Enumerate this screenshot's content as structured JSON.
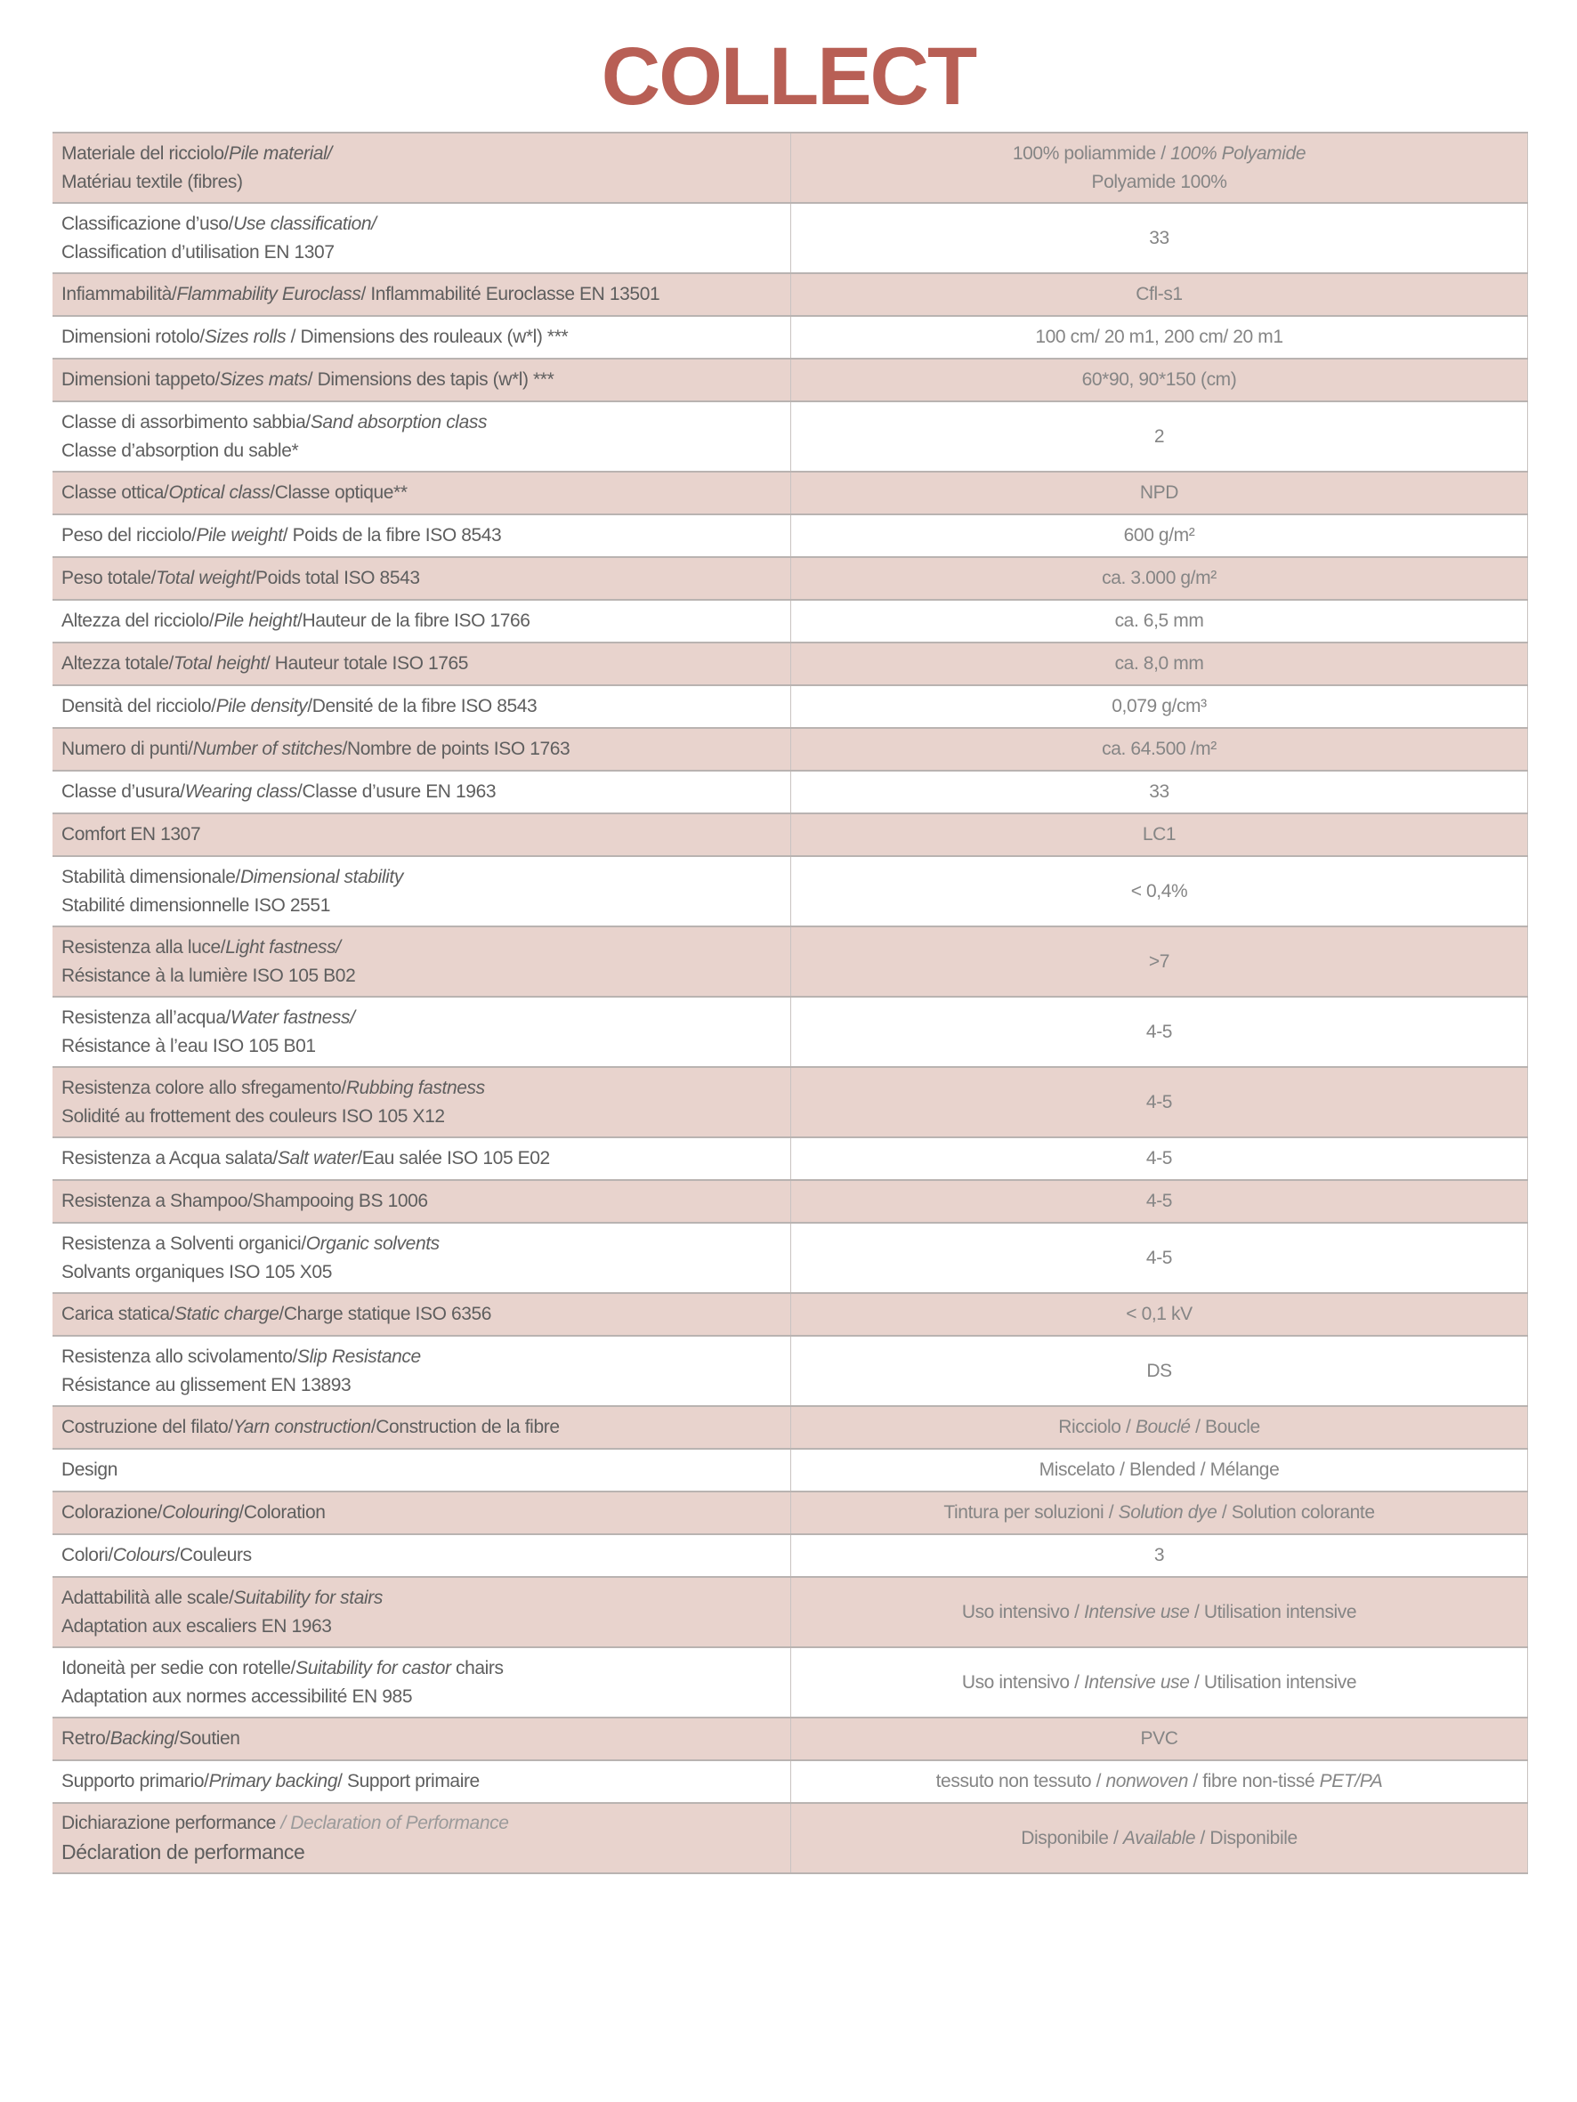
{
  "title": "COLLECT",
  "colors": {
    "title": "#b85f55",
    "band": "#e8d3cd",
    "text": "#5e5e5e",
    "value": "#858585"
  },
  "rows": [
    {
      "label": [
        [
          {
            "t": "Materiale del ricciolo/"
          },
          {
            "t": "Pile material/",
            "s": "i"
          }
        ],
        [
          {
            "t": "Matériau textile (fibres)"
          }
        ]
      ],
      "value": [
        [
          {
            "t": "100% poliammide / "
          },
          {
            "t": "100% Polyamide",
            "s": "i"
          }
        ],
        [
          {
            "t": "Polyamide 100%"
          }
        ]
      ]
    },
    {
      "label": [
        [
          {
            "t": "Classificazione d’uso/"
          },
          {
            "t": "Use classification/",
            "s": "i"
          }
        ],
        [
          {
            "t": "Classification d’utilisation EN 1307"
          }
        ]
      ],
      "value": [
        [
          {
            "t": "33"
          }
        ]
      ]
    },
    {
      "label": [
        [
          {
            "t": "Infiammabilità/"
          },
          {
            "t": "Flammability Euroclass",
            "s": "i"
          },
          {
            "t": "/ Inflammabilité Euroclasse EN 13501"
          }
        ]
      ],
      "value": [
        [
          {
            "t": "Cfl-s1"
          }
        ]
      ]
    },
    {
      "label": [
        [
          {
            "t": "Dimensioni rotolo/"
          },
          {
            "t": "Sizes rolls",
            "s": "i"
          },
          {
            "t": " / Dimensions des rouleaux (w*l) ***"
          }
        ]
      ],
      "value": [
        [
          {
            "t": "100 cm/ 20 m1, 200 cm/ 20 m1"
          }
        ]
      ]
    },
    {
      "label": [
        [
          {
            "t": "Dimensioni tappeto/"
          },
          {
            "t": "Sizes mats",
            "s": "i"
          },
          {
            "t": "/ Dimensions des tapis (w*l) ***"
          }
        ]
      ],
      "value": [
        [
          {
            "t": "60*90, 90*150 (cm)"
          }
        ]
      ]
    },
    {
      "label": [
        [
          {
            "t": "Classe di assorbimento sabbia/"
          },
          {
            "t": "Sand absorption class",
            "s": "i"
          }
        ],
        [
          {
            "t": "Classe d’absorption du sable*"
          }
        ]
      ],
      "value": [
        [
          {
            "t": "2"
          }
        ]
      ]
    },
    {
      "label": [
        [
          {
            "t": "Classe ottica/"
          },
          {
            "t": "Optical class",
            "s": "i"
          },
          {
            "t": "/Classe optique**"
          }
        ]
      ],
      "value": [
        [
          {
            "t": "NPD"
          }
        ]
      ]
    },
    {
      "label": [
        [
          {
            "t": "Peso del ricciolo/"
          },
          {
            "t": "Pile weight",
            "s": "i"
          },
          {
            "t": "/ Poids de la fibre ISO 8543"
          }
        ]
      ],
      "value": [
        [
          {
            "t": "600 g/m²"
          }
        ]
      ]
    },
    {
      "label": [
        [
          {
            "t": "Peso totale/"
          },
          {
            "t": "Total weight",
            "s": "i"
          },
          {
            "t": "/Poids total ISO 8543"
          }
        ]
      ],
      "value": [
        [
          {
            "t": "ca. 3.000 g/m²"
          }
        ]
      ]
    },
    {
      "label": [
        [
          {
            "t": "Altezza del ricciolo/"
          },
          {
            "t": "Pile height",
            "s": "i"
          },
          {
            "t": "/Hauteur de la fibre ISO 1766"
          }
        ]
      ],
      "value": [
        [
          {
            "t": "ca. 6,5 mm"
          }
        ]
      ]
    },
    {
      "label": [
        [
          {
            "t": "Altezza totale/"
          },
          {
            "t": "Total height",
            "s": "i"
          },
          {
            "t": "/ Hauteur totale ISO 1765"
          }
        ]
      ],
      "value": [
        [
          {
            "t": "ca. 8,0 mm"
          }
        ]
      ]
    },
    {
      "label": [
        [
          {
            "t": "Densità del ricciolo/"
          },
          {
            "t": "Pile density",
            "s": "i"
          },
          {
            "t": "/Densité de la fibre ISO 8543"
          }
        ]
      ],
      "value": [
        [
          {
            "t": "0,079 g/cm³"
          }
        ]
      ]
    },
    {
      "label": [
        [
          {
            "t": "Numero di punti/"
          },
          {
            "t": "Number of stitches",
            "s": "i"
          },
          {
            "t": "/Nombre de points ISO 1763"
          }
        ]
      ],
      "value": [
        [
          {
            "t": "ca. 64.500 /m²"
          }
        ]
      ]
    },
    {
      "label": [
        [
          {
            "t": "Classe d’usura/"
          },
          {
            "t": "Wearing class",
            "s": "i"
          },
          {
            "t": "/Classe d’usure EN 1963"
          }
        ]
      ],
      "value": [
        [
          {
            "t": "33"
          }
        ]
      ]
    },
    {
      "label": [
        [
          {
            "t": "Comfort EN 1307"
          }
        ]
      ],
      "value": [
        [
          {
            "t": "LC1"
          }
        ]
      ]
    },
    {
      "label": [
        [
          {
            "t": "Stabilità dimensionale/"
          },
          {
            "t": "Dimensional stability",
            "s": "i"
          }
        ],
        [
          {
            "t": "Stabilité dimensionnelle ISO 2551"
          }
        ]
      ],
      "value": [
        [
          {
            "t": "< 0,4%"
          }
        ]
      ]
    },
    {
      "label": [
        [
          {
            "t": "Resistenza alla luce/"
          },
          {
            "t": "Light fastness/",
            "s": "i"
          }
        ],
        [
          {
            "t": "Résistance à la lumière ISO 105 B02"
          }
        ]
      ],
      "value": [
        [
          {
            "t": ">7"
          }
        ]
      ]
    },
    {
      "label": [
        [
          {
            "t": "Resistenza all’acqua/"
          },
          {
            "t": "Water fastness/",
            "s": "i"
          }
        ],
        [
          {
            "t": "Résistance à l’eau ISO 105 B01"
          }
        ]
      ],
      "value": [
        [
          {
            "t": "4-5"
          }
        ]
      ]
    },
    {
      "label": [
        [
          {
            "t": "Resistenza colore allo sfregamento/"
          },
          {
            "t": "Rubbing fastness",
            "s": "i"
          }
        ],
        [
          {
            "t": "Solidité au frottement des couleurs ISO 105 X12"
          }
        ]
      ],
      "value": [
        [
          {
            "t": "4-5"
          }
        ]
      ]
    },
    {
      "label": [
        [
          {
            "t": "Resistenza a Acqua salata/"
          },
          {
            "t": "Salt water",
            "s": "i"
          },
          {
            "t": "/Eau salée ISO 105 E02"
          }
        ]
      ],
      "value": [
        [
          {
            "t": "4-5"
          }
        ]
      ]
    },
    {
      "label": [
        [
          {
            "t": "Resistenza a Shampoo/Shampooing BS 1006"
          }
        ]
      ],
      "value": [
        [
          {
            "t": "4-5"
          }
        ]
      ]
    },
    {
      "label": [
        [
          {
            "t": "Resistenza a Solventi organici/"
          },
          {
            "t": "Organic solvents",
            "s": "i"
          }
        ],
        [
          {
            "t": "Solvants organiques ISO 105 X05"
          }
        ]
      ],
      "value": [
        [
          {
            "t": "4-5"
          }
        ]
      ]
    },
    {
      "label": [
        [
          {
            "t": "Carica statica/"
          },
          {
            "t": "Static charge",
            "s": "i"
          },
          {
            "t": "/Charge statique ISO 6356"
          }
        ]
      ],
      "value": [
        [
          {
            "t": "< 0,1 kV"
          }
        ]
      ]
    },
    {
      "label": [
        [
          {
            "t": "Resistenza allo scivolamento/"
          },
          {
            "t": "Slip Resistance",
            "s": "i"
          }
        ],
        [
          {
            "t": "Résistance au glissement EN 13893"
          }
        ]
      ],
      "value": [
        [
          {
            "t": "DS"
          }
        ]
      ]
    },
    {
      "label": [
        [
          {
            "t": "Costruzione del filato/"
          },
          {
            "t": "Yarn construction",
            "s": "i"
          },
          {
            "t": "/Construction de la fibre"
          }
        ]
      ],
      "value": [
        [
          {
            "t": "Ricciolo / "
          },
          {
            "t": "Bouclé",
            "s": "i"
          },
          {
            "t": " / Boucle"
          }
        ]
      ]
    },
    {
      "label": [
        [
          {
            "t": "Design"
          }
        ]
      ],
      "value": [
        [
          {
            "t": "Miscelato / Blended / Mélange"
          }
        ]
      ]
    },
    {
      "label": [
        [
          {
            "t": "Colorazione/"
          },
          {
            "t": "Colouring",
            "s": "i"
          },
          {
            "t": "/Coloration"
          }
        ]
      ],
      "value": [
        [
          {
            "t": "Tintura per soluzioni / "
          },
          {
            "t": "Solution dye",
            "s": "i"
          },
          {
            "t": " / Solution colorante"
          }
        ]
      ]
    },
    {
      "label": [
        [
          {
            "t": "Colori/"
          },
          {
            "t": "Colours",
            "s": "i"
          },
          {
            "t": "/Couleurs"
          }
        ]
      ],
      "value": [
        [
          {
            "t": "3"
          }
        ]
      ]
    },
    {
      "label": [
        [
          {
            "t": "Adattabilità alle scale/"
          },
          {
            "t": "Suitability for stairs",
            "s": "i"
          }
        ],
        [
          {
            "t": "Adaptation aux escaliers EN 1963"
          }
        ]
      ],
      "value": [
        [
          {
            "t": "Uso intensivo / "
          },
          {
            "t": "Intensive use",
            "s": "i"
          },
          {
            "t": " / Utilisation intensive"
          }
        ]
      ]
    },
    {
      "label": [
        [
          {
            "t": "Idoneità per sedie con rotelle/"
          },
          {
            "t": "Suitability for castor",
            "s": "i"
          },
          {
            "t": " chairs"
          }
        ],
        [
          {
            "t": "Adaptation aux normes accessibilité EN 985"
          }
        ]
      ],
      "value": [
        [
          {
            "t": "Uso intensivo / "
          },
          {
            "t": "Intensive use",
            "s": "i"
          },
          {
            "t": " / Utilisation intensive"
          }
        ]
      ]
    },
    {
      "label": [
        [
          {
            "t": "Retro/"
          },
          {
            "t": "Backing",
            "s": "i"
          },
          {
            "t": "/Soutien"
          }
        ]
      ],
      "value": [
        [
          {
            "t": "PVC"
          }
        ]
      ]
    },
    {
      "label": [
        [
          {
            "t": "Supporto primario/"
          },
          {
            "t": "Primary backing",
            "s": "i"
          },
          {
            "t": "/ Support primaire"
          }
        ]
      ],
      "value": [
        [
          {
            "t": "tessuto non tessuto / "
          },
          {
            "t": "nonwoven",
            "s": "i"
          },
          {
            "t": " /  fibre non-tissé "
          },
          {
            "t": "PET/PA",
            "s": "i"
          }
        ]
      ]
    },
    {
      "label": [
        [
          {
            "t": "Dichiarazione performance"
          },
          {
            "t": " / Declaration of Performance",
            "s": "l"
          }
        ],
        [
          {
            "t": "Déclaration de performance",
            "s": "big"
          }
        ]
      ],
      "value": [
        [
          {
            "t": "Disponibile / "
          },
          {
            "t": "Available",
            "s": "i"
          },
          {
            "t": " / Disponibile"
          }
        ]
      ]
    }
  ]
}
